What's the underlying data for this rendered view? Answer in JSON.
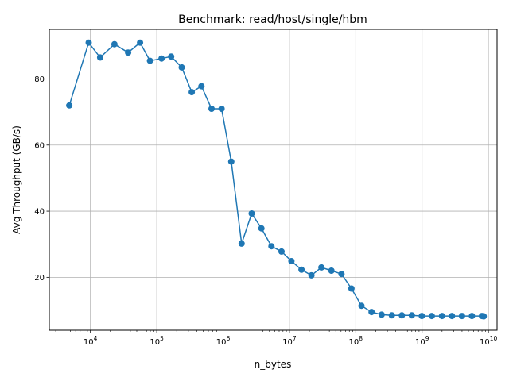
{
  "chart_data": {
    "type": "line",
    "title": "Benchmark: read/host/single/hbm",
    "xlabel": "n_bytes",
    "ylabel": "Avg Throughput (GB/s)",
    "xscale": "log",
    "grid": true,
    "marker": "circle",
    "color": "#1f77b4",
    "xlim": [
      2400,
      13500000000
    ],
    "ylim": [
      4,
      95
    ],
    "x_ticks": [
      {
        "value": 10000,
        "base": "10",
        "exp": "4"
      },
      {
        "value": 100000,
        "base": "10",
        "exp": "5"
      },
      {
        "value": 1000000,
        "base": "10",
        "exp": "6"
      },
      {
        "value": 10000000,
        "base": "10",
        "exp": "7"
      },
      {
        "value": 100000000,
        "base": "10",
        "exp": "8"
      },
      {
        "value": 1000000000,
        "base": "10",
        "exp": "9"
      },
      {
        "value": 10000000000,
        "base": "10",
        "exp": "10"
      }
    ],
    "y_ticks": [
      20,
      40,
      60,
      80
    ],
    "series": [
      {
        "x": [
          4800,
          9400,
          14000,
          23000,
          37000,
          56000,
          79000,
          118000,
          165000,
          238000,
          337000,
          472000,
          670000,
          950000,
          1330000,
          1900000,
          2700000,
          3780000,
          5350000,
          7600000,
          10700000,
          15200000,
          21500000,
          30300000,
          43000000,
          61000000,
          86000000,
          122000000,
          173000000,
          246000000,
          350000000,
          495000000,
          700000000,
          990000000,
          1400000000,
          2000000000,
          2820000000,
          4000000000,
          5650000000,
          8000000000,
          8500000000
        ],
        "y": [
          72,
          91,
          86.5,
          90.5,
          88,
          91,
          85.5,
          86.2,
          86.8,
          83.5,
          76,
          77.8,
          71,
          71,
          55,
          30.2,
          39.3,
          34.8,
          29.4,
          27.8,
          24.9,
          22.3,
          20.6,
          23,
          22,
          21,
          16.6,
          11.4,
          9.5,
          8.7,
          8.5,
          8.5,
          8.5,
          8.3,
          8.3,
          8.3,
          8.3,
          8.3,
          8.3,
          8.3,
          8.2
        ]
      }
    ]
  }
}
